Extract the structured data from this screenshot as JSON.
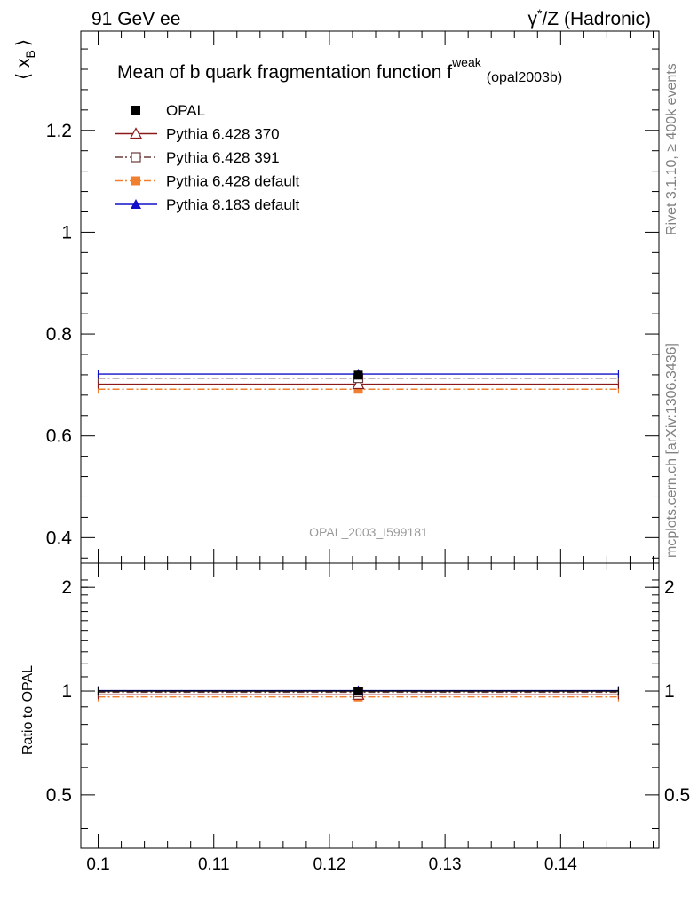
{
  "header": {
    "left": "91 GeV ee",
    "right_gamma": "γ",
    "right_star": "*",
    "right_rest": "/Z (Hadronic)"
  },
  "side": {
    "rivet": "Rivet 3.1.10, ≥ 400k events",
    "mcplots": "mcplots.cern.ch [arXiv:1306.3436]"
  },
  "chart_data": [
    {
      "type": "scatter",
      "title_main": "Mean of b quark fragmentation function f",
      "title_sup": "weak",
      "title_sub": "(opal2003b)",
      "ylabel_main": "⟨ x",
      "ylabel_sub": "B",
      "ylabel_close": "⟩",
      "analysis_label": "OPAL_2003_I599181",
      "xlim": [
        0.0985,
        0.1485
      ],
      "ylim": [
        0.35,
        1.395
      ],
      "x_ticks": [
        0.1,
        0.11,
        0.12,
        0.13,
        0.14
      ],
      "y_ticks": [
        0.4,
        0.6,
        0.8,
        1,
        1.2
      ],
      "y_tick_labels": [
        "0.4",
        "0.6",
        "0.8",
        "1",
        "1.2"
      ],
      "legend_position": "top-left",
      "series": [
        {
          "name": "OPAL",
          "x": [
            0.1225
          ],
          "xerr": [
            0.1,
            0.145
          ],
          "y": [
            0.7193
          ],
          "yerr": 0.003,
          "color": "#000000",
          "marker": "square-filled",
          "line": "none"
        },
        {
          "name": "Pythia 6.428 370",
          "x": [
            0.1225
          ],
          "xerr": [
            0.1,
            0.145
          ],
          "y": [
            0.7015
          ],
          "color": "#8b1a1a",
          "marker": "triangle-open",
          "line": "solid"
        },
        {
          "name": "Pythia 6.428 391",
          "x": [
            0.1225
          ],
          "xerr": [
            0.1,
            0.145
          ],
          "y": [
            0.7135
          ],
          "color": "#6b3a3a",
          "marker": "square-open",
          "line": "dashdot"
        },
        {
          "name": "Pythia 6.428 default",
          "x": [
            0.1225
          ],
          "xerr": [
            0.1,
            0.145
          ],
          "y": [
            0.6915
          ],
          "color": "#f07f30",
          "marker": "square-filled",
          "line": "dashdot"
        },
        {
          "name": "Pythia 8.183 default",
          "x": [
            0.1225
          ],
          "xerr": [
            0.1,
            0.145
          ],
          "y": [
            0.7215
          ],
          "color": "#1010c8",
          "marker": "triangle-filled",
          "line": "solid"
        }
      ]
    },
    {
      "type": "scatter",
      "ylabel": "Ratio to OPAL",
      "xlim": [
        0.0985,
        0.1485
      ],
      "ylim": [
        0.35,
        2.35
      ],
      "x_ticks": [
        0.1,
        0.11,
        0.12,
        0.13,
        0.14
      ],
      "x_tick_labels": [
        "0.1",
        "0.11",
        "0.12",
        "0.13",
        "0.14"
      ],
      "y_ticks": [
        0.5,
        1,
        2
      ],
      "y_tick_labels": [
        "0.5",
        "1",
        "2"
      ],
      "series": [
        {
          "name": "OPAL",
          "y": [
            1.0
          ],
          "color": "#000000"
        },
        {
          "name": "Pythia 6.428 370",
          "y": [
            0.975
          ],
          "color": "#8b1a1a"
        },
        {
          "name": "Pythia 6.428 391",
          "y": [
            0.992
          ],
          "color": "#6b3a3a"
        },
        {
          "name": "Pythia 6.428 default",
          "y": [
            0.961
          ],
          "color": "#f07f30"
        },
        {
          "name": "Pythia 8.183 default",
          "y": [
            1.003
          ],
          "color": "#1010c8"
        }
      ]
    }
  ]
}
